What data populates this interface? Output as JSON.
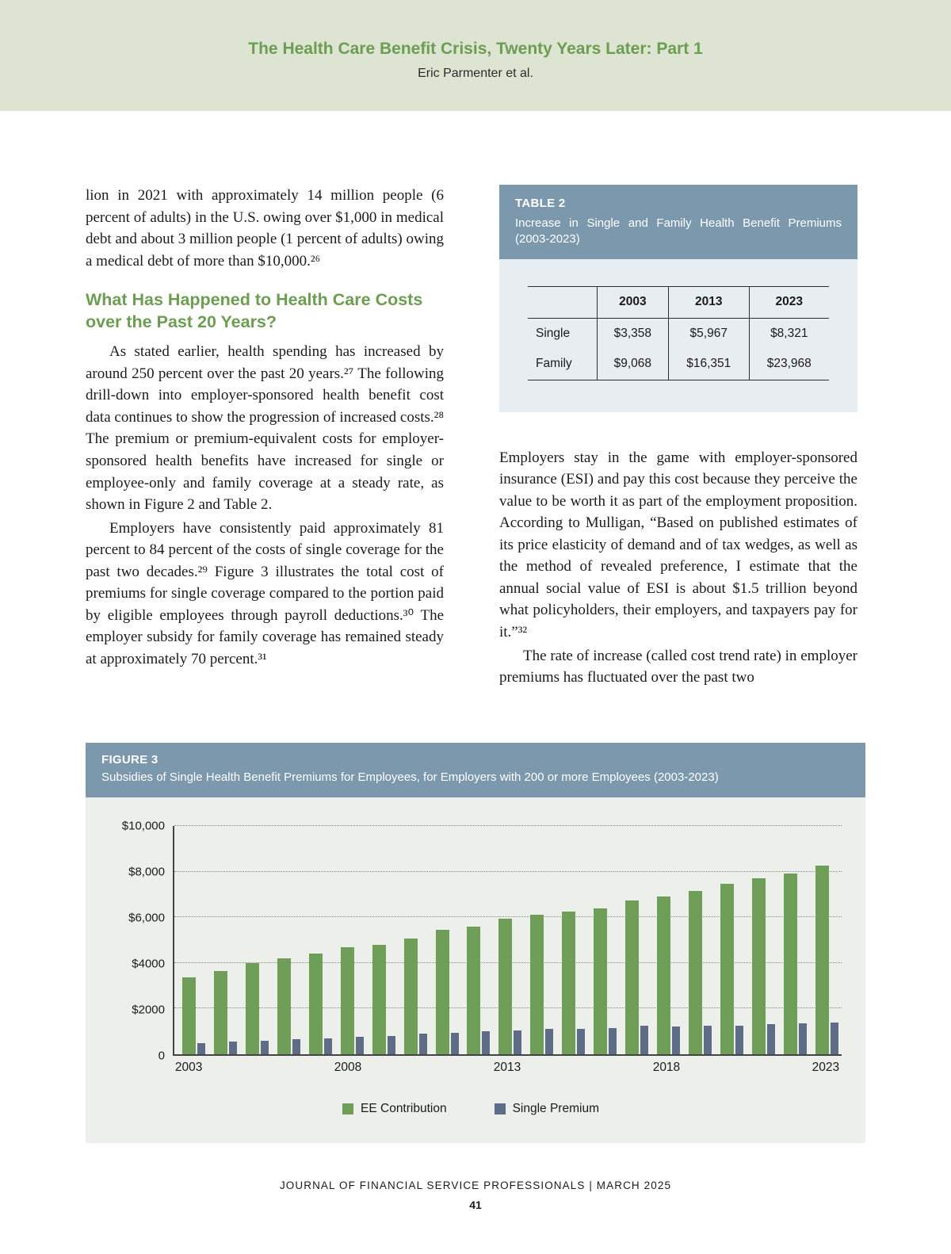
{
  "header": {
    "title": "The Health Care Benefit Crisis, Twenty Years Later: Part 1",
    "authors": "Eric Parmenter et al."
  },
  "left_column": {
    "para1": "lion in 2021 with approximately 14 million people (6 percent of adults) in the U.S. owing over $1,000 in medical debt and about 3 million people (1 percent of adults) owing a medical debt of more than $10,000.²⁶",
    "heading": "What Has Happened to Health Care Costs over the Past 20 Years?",
    "para2": "As stated earlier, health spending has increased by around 250 percent over the past 20 years.²⁷ The following drill-down into employer-sponsored health benefit cost data continues to show the progression of increased costs.²⁸ The premium or premium-equivalent costs for employer-sponsored health benefits have increased for single or employee-only and family coverage at a steady rate, as shown in Figure 2 and Table 2.",
    "para3": "Employers have consistently paid approximately 81 percent to 84 percent of the costs of single coverage for the past two decades.²⁹ Figure 3 illustrates the total cost of premiums for single coverage compared to the portion paid by eligible employees through payroll deductions.³⁰ The employer subsidy for family coverage has remained steady at approximately 70 percent.³¹"
  },
  "table2": {
    "label": "TABLE 2",
    "caption": "Increase in Single and Family Health Benefit Premiums (2003-2023)",
    "columns": [
      "2003",
      "2013",
      "2023"
    ],
    "rows": [
      {
        "label": "Single",
        "values": [
          "$3,358",
          "$5,967",
          "$8,321"
        ]
      },
      {
        "label": "Family",
        "values": [
          "$9,068",
          "$16,351",
          "$23,968"
        ]
      }
    ]
  },
  "right_column": {
    "para1": "Employers stay in the game with employer-sponsored insurance (ESI) and pay this cost because they perceive the value to be worth it as part of the employment proposition. According to Mulligan, “Based on published estimates of its price elasticity of demand and of tax wedges, as well as the method of revealed preference, I estimate that the annual social value of ESI is about $1.5 trillion beyond what policyholders, their employers, and taxpayers pay for it.”³²",
    "para2": "The rate of increase (called cost trend rate) in employer premiums has fluctuated over the past two"
  },
  "figure3": {
    "label": "FIGURE 3",
    "caption": "Subsidies  of Single Health Benefit Premiums for Employees, for Employers with 200 or more Employees (2003-2023)",
    "chart_data": {
      "type": "bar",
      "title": "Subsidies of Single Health Benefit Premiums for Employees, for Employers with 200 or more Employees (2003-2023)",
      "x": [
        2003,
        2004,
        2005,
        2006,
        2007,
        2008,
        2009,
        2010,
        2011,
        2012,
        2013,
        2014,
        2015,
        2016,
        2017,
        2018,
        2019,
        2020,
        2021,
        2022,
        2023
      ],
      "series": [
        {
          "name": "EE Contribution",
          "color": "#6f9e58",
          "values": [
            3350,
            3650,
            4000,
            4200,
            4400,
            4700,
            4800,
            5050,
            5450,
            5600,
            5950,
            6100,
            6250,
            6400,
            6750,
            6900,
            7150,
            7450,
            7700,
            7900,
            8250
          ]
        },
        {
          "name": "Single Premium",
          "color": "#5e6c87",
          "values": [
            500,
            550,
            600,
            650,
            700,
            750,
            800,
            900,
            950,
            1000,
            1050,
            1100,
            1100,
            1150,
            1250,
            1200,
            1250,
            1250,
            1300,
            1350,
            1400
          ]
        }
      ],
      "ylim": [
        0,
        10000
      ],
      "yticks": [
        {
          "label": "$10,000",
          "value": 10000
        },
        {
          "label": "$8,000",
          "value": 8000
        },
        {
          "label": "$6,000",
          "value": 6000
        },
        {
          "label": "$4000",
          "value": 4000
        },
        {
          "label": "$2000",
          "value": 2000
        },
        {
          "label": "0",
          "value": 0
        }
      ],
      "xticks": [
        {
          "label": "2003",
          "index": 0
        },
        {
          "label": "2008",
          "index": 5
        },
        {
          "label": "2013",
          "index": 10
        },
        {
          "label": "2018",
          "index": 15
        },
        {
          "label": "2023",
          "index": 20
        }
      ],
      "grid": "dotted-horizontal",
      "legend_position": "bottom"
    }
  },
  "footer": {
    "journal_line": "JOURNAL OF FINANCIAL SERVICE PROFESSIONALS   |   MARCH 2025",
    "page_number": "41"
  }
}
